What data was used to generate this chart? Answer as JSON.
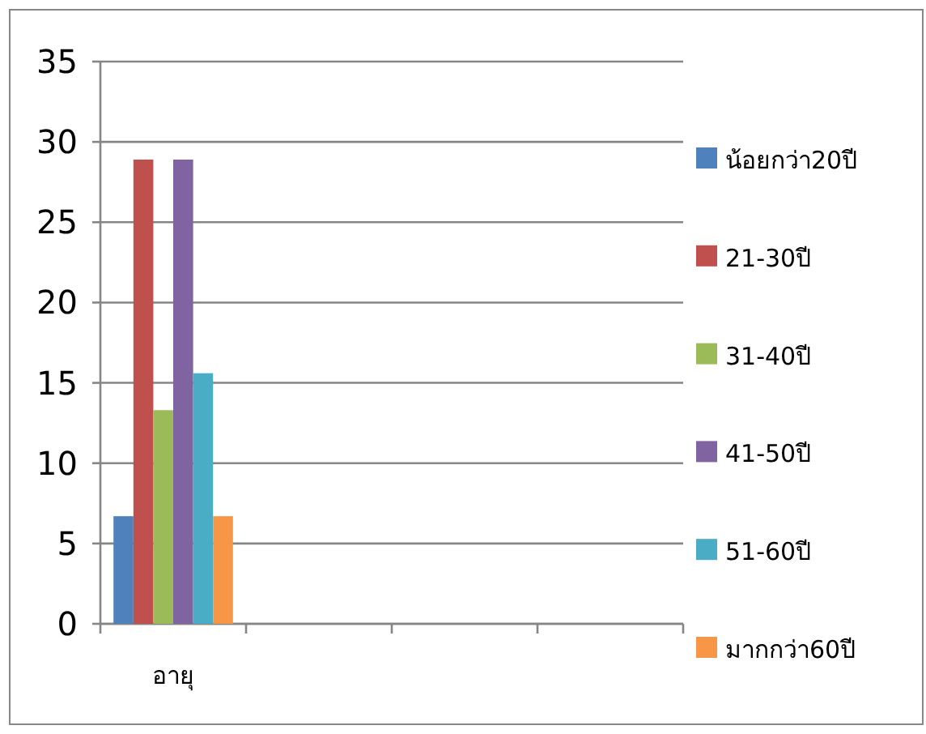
{
  "chart_data": {
    "type": "bar",
    "categories": [
      "อายุ",
      null,
      null,
      null
    ],
    "series": [
      {
        "name": "น้อยกว่า20ปี",
        "color": "#4f81bd",
        "values": [
          6.7,
          null,
          null,
          null
        ]
      },
      {
        "name": "21-30ปี",
        "color": "#c0504d",
        "values": [
          28.9,
          null,
          null,
          null
        ]
      },
      {
        "name": "31-40ปี",
        "color": "#9bbb59",
        "values": [
          13.3,
          null,
          null,
          null
        ]
      },
      {
        "name": "41-50ปี",
        "color": "#8064a2",
        "values": [
          28.9,
          null,
          null,
          null
        ]
      },
      {
        "name": "51-60ปี",
        "color": "#4bacc6",
        "values": [
          15.6,
          null,
          null,
          null
        ]
      },
      {
        "name": "มากกว่า60ปี",
        "color": "#f79646",
        "values": [
          6.7,
          null,
          null,
          null
        ]
      }
    ],
    "ylim": [
      0,
      35
    ],
    "yticks": [
      0,
      5,
      10,
      15,
      20,
      25,
      30,
      35
    ],
    "grid": "y",
    "legend": "right"
  }
}
